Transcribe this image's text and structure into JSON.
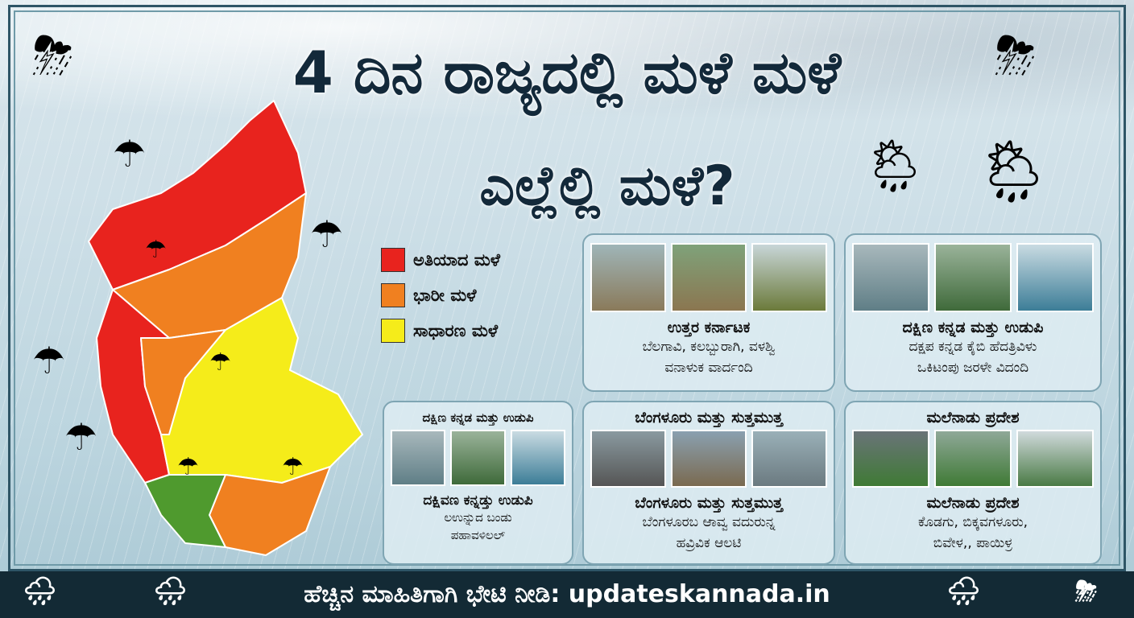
{
  "title": {
    "line1": "4 ದಿನ ರಾಜ್ಯದಲ್ಲಿ ಮಳೆ ಮಳೆ",
    "line2": "ಎಲ್ಲೆಲ್ಲಿ ಮಳೆ?"
  },
  "legend": [
    {
      "label": "ಅತಿಯಾದ ಮಳೆ",
      "color": "#e8231e"
    },
    {
      "label": "ಭಾರೀ ಮಳೆ",
      "color": "#f08020"
    },
    {
      "label": "ಸಾಧಾರಣ ಮಳೆ",
      "color": "#f5ec1a"
    }
  ],
  "map_colors": {
    "extreme": "#e8231e",
    "heavy": "#f08020",
    "moderate": "#f5ec1a",
    "light": "#4f9a2e"
  },
  "cards": [
    {
      "photo_header": "",
      "heading": "ಉತ್ತರ ಕರ್ನಾಟಕ",
      "lines": [
        "ಬೆಲಗಾವಿ, ಕಲಬ್ಬುರಾಗಿ, ವಳಶ್ವಿ",
        "ವನಾಳುಕ ವಾರ್ದಂದಿ"
      ]
    },
    {
      "photo_header": "",
      "heading": "ದಕ್ಷಿಣ ಕನ್ನಡ ಮತ್ತು ಉಡುಪಿ",
      "lines": [
        "ದಕ್ಷಪ ಕನ್ನಡ ಕೈಬಿ ಹೆದತ್ರಿವಿಳು",
        "ಒಕಿಟಂಪು ಜರಳೇ ವಿದಂದಿ"
      ]
    },
    {
      "photo_header": "ದಕ್ಷಿಣ ಕನ್ನಡ ಮತ್ತು ಉಡುಪಿ",
      "heading": "ದಕ್ಷಿವಣ ಕನ್ನಡ್ತು ಉಡುಪಿ",
      "lines": [
        "ಲಉನ್ನುದ ಬಂಡು",
        "ಪಹಾವಳಿಲಲ್"
      ]
    },
    {
      "photo_header": "ಬೆಂಗಳೂರು ಮತ್ತು ಸುತ್ತಮುತ್ತ",
      "heading": "ಬೆಂಗಳೂರು ಮತ್ತು ಸುತ್ತಮುತ್ತ",
      "lines": [
        "ಬೆಂಗಳೂರಬ ಆಾವ್ವ ವದುರುನ್ನ",
        "ಹವ್ರಿವಿಕ ಆಲಟಿ"
      ]
    },
    {
      "photo_header": "ಮಲೆನಾಡು ಪ್ರದೇಶ",
      "heading": "ಮಲೆನಾಡು ಪ್ರದೇಶ",
      "lines": [
        "ಕೊಡಗು, ಬಿಕ್ಕವಗಳೂರು,",
        "ಬಿವೇಳ,, ಪಾಯಿಳ್ರ"
      ]
    }
  ],
  "footer": {
    "text": "ಹೆಚ್ಚಿನ ಮಾಹಿತಿಗಾಗಿ ಭೇಟಿ ನೀಡಿ: updateskannada.in"
  }
}
